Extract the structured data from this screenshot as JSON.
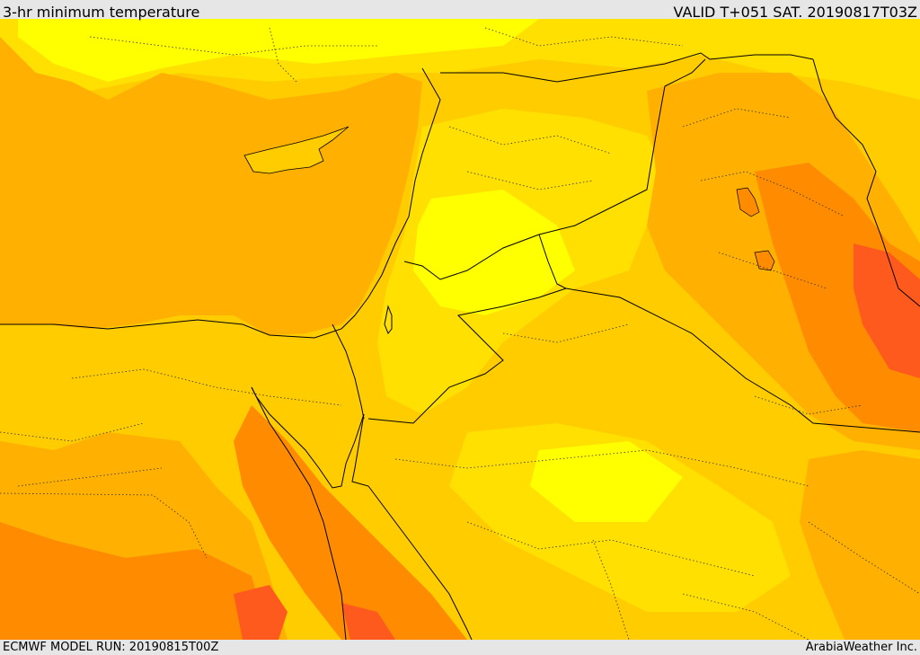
{
  "header": {
    "title": "3-hr minimum temperature",
    "valid_time": "VALID T+051 SAT. 20190817T03Z"
  },
  "footer": {
    "model_run": "ECMWF MODEL RUN: 20190815T00Z",
    "credit": "ArabiaWeather Inc."
  },
  "colors": {
    "sea_orange": "#ffb000",
    "light_orange": "#ffcc00",
    "yellow": "#ffe000",
    "bright_yellow": "#ffff00",
    "deep_orange": "#ff8c00",
    "red_orange": "#ff5a1e",
    "border": "#000000"
  }
}
